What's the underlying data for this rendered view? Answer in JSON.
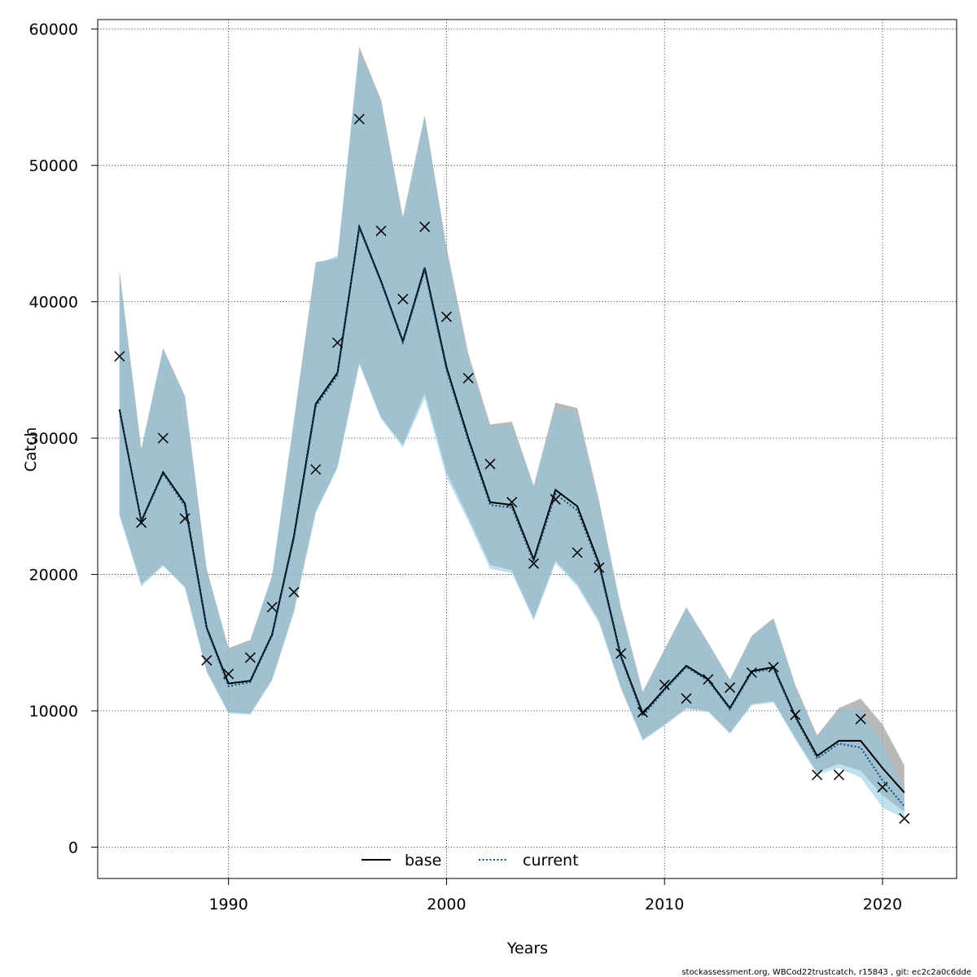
{
  "chart_data": {
    "type": "line",
    "xlabel": "Years",
    "ylabel": "Catch",
    "xlim": [
      1984,
      2023.4
    ],
    "ylim": [
      -2300,
      60700
    ],
    "xticks": [
      1990,
      2000,
      2010,
      2020
    ],
    "yticks": [
      0,
      10000,
      20000,
      30000,
      40000,
      50000,
      60000
    ],
    "grid": true,
    "legend_position": "bottom",
    "colors": {
      "base_band": "#9e9e9e",
      "current_band": "#8ec6e4",
      "base_line": "#000000",
      "current_line": "#0b4f7c",
      "points": "#000000",
      "grid": "#000000"
    },
    "x": [
      1985,
      1986,
      1987,
      1988,
      1989,
      1990,
      1991,
      1992,
      1993,
      1994,
      1995,
      1996,
      1997,
      1998,
      1999,
      2000,
      2001,
      2002,
      2003,
      2004,
      2005,
      2006,
      2007,
      2008,
      2009,
      2010,
      2011,
      2012,
      2013,
      2014,
      2015,
      2016,
      2017,
      2018,
      2019,
      2020,
      2021
    ],
    "series": [
      {
        "name": "base",
        "style": "solid",
        "values": [
          32100,
          23900,
          27500,
          25200,
          16100,
          12000,
          12200,
          15600,
          22800,
          32500,
          34800,
          45500,
          41500,
          37100,
          42500,
          35200,
          30000,
          25300,
          25100,
          21100,
          26200,
          25000,
          20800,
          14000,
          9800,
          11600,
          13300,
          12300,
          10200,
          12900,
          13200,
          9600,
          6700,
          7800,
          7800,
          5800,
          4000
        ],
        "lower": [
          24400,
          19300,
          20700,
          19100,
          12900,
          9900,
          9800,
          12300,
          17300,
          24600,
          27900,
          35500,
          31500,
          29500,
          33300,
          27500,
          24200,
          20700,
          20300,
          16800,
          21000,
          19300,
          16600,
          11700,
          7900,
          9000,
          10200,
          10000,
          8400,
          10500,
          10700,
          8000,
          5500,
          6100,
          5600,
          3800,
          2600
        ],
        "upper": [
          42300,
          29200,
          36600,
          33100,
          20400,
          14600,
          15200,
          19900,
          31300,
          42900,
          43200,
          58700,
          54800,
          46200,
          53700,
          44000,
          36200,
          31000,
          31200,
          26500,
          32600,
          32200,
          25400,
          17600,
          11400,
          14500,
          17600,
          15000,
          12300,
          15500,
          16800,
          11900,
          8200,
          10200,
          10900,
          9000,
          6000
        ]
      },
      {
        "name": "current",
        "style": "dotted",
        "values": [
          32000,
          23800,
          27400,
          25000,
          16000,
          11800,
          12100,
          15500,
          22600,
          32300,
          34600,
          45400,
          41400,
          37000,
          42300,
          35000,
          29800,
          25100,
          24900,
          20900,
          25900,
          24700,
          20600,
          13900,
          9600,
          11500,
          13200,
          12200,
          10100,
          12800,
          13100,
          9500,
          6500,
          7600,
          7300,
          4900,
          3000
        ],
        "lower": [
          24300,
          19100,
          20600,
          19000,
          12800,
          9800,
          9700,
          12200,
          17200,
          24500,
          27800,
          35400,
          31400,
          29300,
          32900,
          27100,
          23900,
          20400,
          20100,
          16600,
          20800,
          19100,
          16400,
          11600,
          7800,
          8900,
          10100,
          9900,
          8300,
          10400,
          10600,
          7900,
          5300,
          5800,
          5100,
          2900,
          2100
        ],
        "upper": [
          42100,
          29100,
          36500,
          33000,
          20300,
          14500,
          15100,
          19800,
          31100,
          42700,
          43400,
          58300,
          54600,
          46000,
          53500,
          43700,
          35900,
          30800,
          31000,
          26300,
          32200,
          31800,
          25200,
          17500,
          11300,
          14400,
          17500,
          14900,
          12200,
          15400,
          16700,
          11800,
          8000,
          10000,
          10100,
          7600,
          4200
        ]
      }
    ],
    "observed": {
      "marker": "x",
      "values": [
        36000,
        23800,
        30000,
        24100,
        13700,
        12700,
        13900,
        17600,
        18700,
        27700,
        37000,
        53400,
        45200,
        40200,
        45500,
        38900,
        34400,
        28100,
        25300,
        20800,
        25500,
        21600,
        20500,
        14200,
        9900,
        11900,
        10900,
        12300,
        11700,
        12800,
        13200,
        9700,
        5300,
        5300,
        9400,
        4400,
        2100
      ]
    },
    "legend": [
      "base",
      "current"
    ],
    "footer_text": "stockassessment.org, WBCod22trustcatch, r15843 , git: ec2c2a0c6dde"
  }
}
